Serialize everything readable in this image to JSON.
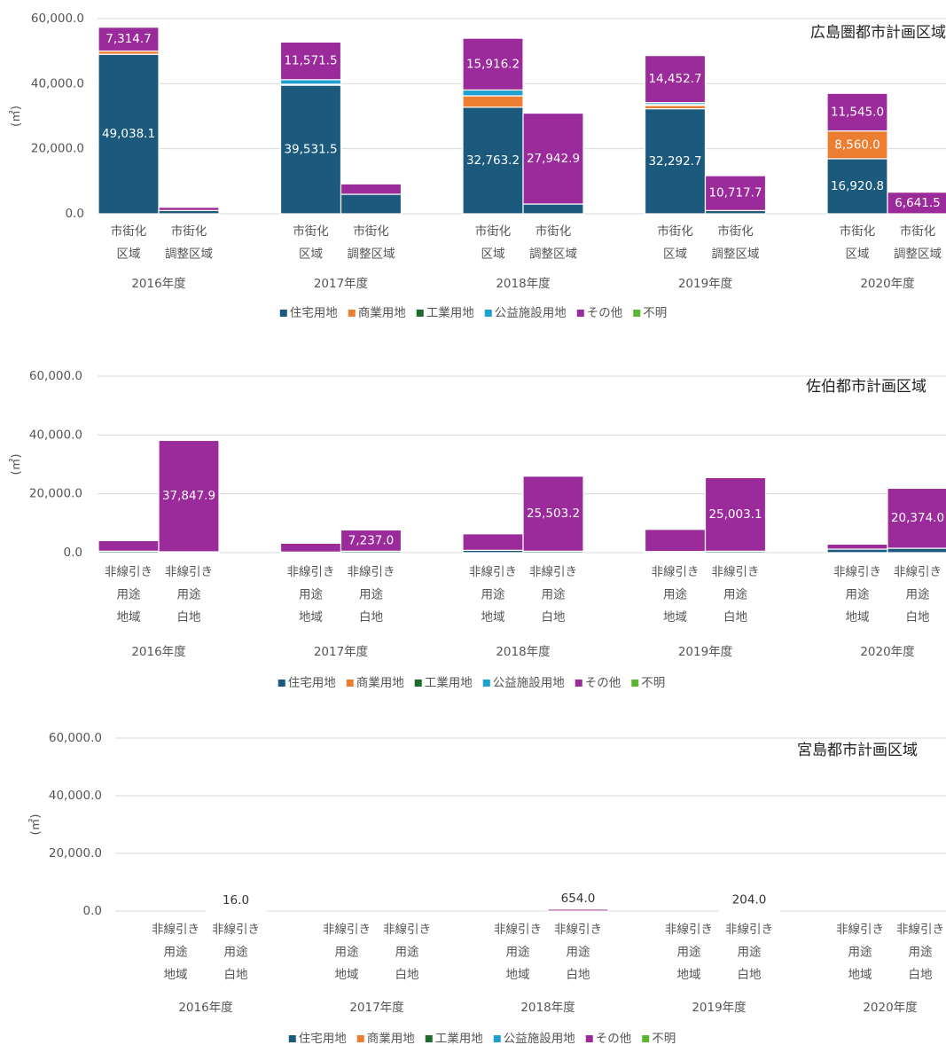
{
  "chart_data": [
    {
      "type": "bar",
      "stacked": true,
      "title": "広島圏都市計画区域",
      "y_label": "(㎡)",
      "ylim": [
        0,
        60000
      ],
      "yticks": [
        {
          "value": 0,
          "label": "0.0"
        },
        {
          "value": 20000,
          "label": "20,000.0"
        },
        {
          "value": 40000,
          "label": "40,000.0"
        },
        {
          "value": 60000,
          "label": "60,000.0"
        }
      ],
      "grid": true,
      "groups": [
        "2016年度",
        "2017年度",
        "2018年度",
        "2019年度",
        "2020年度"
      ],
      "categories": [
        [
          "市街化",
          "区域"
        ],
        [
          "市街化",
          "調整区域"
        ],
        [
          "市街化",
          "区域"
        ],
        [
          "市街化",
          "調整区域"
        ],
        [
          "市街化",
          "区域"
        ],
        [
          "市街化",
          "調整区域"
        ],
        [
          "市街化",
          "区域"
        ],
        [
          "市街化",
          "調整区域"
        ],
        [
          "市街化",
          "区域"
        ],
        [
          "市街化",
          "調整区域"
        ]
      ],
      "series": [
        {
          "name": "住宅用地",
          "color": "#1b5a7d",
          "values": [
            49038.1,
            1000,
            39531.5,
            6000,
            32763.2,
            3000,
            32292.7,
            1000,
            16920.8,
            0
          ],
          "value_labels": [
            "49,038.1",
            null,
            "39,531.5",
            null,
            "32,763.2",
            null,
            "32,292.7",
            null,
            "16,920.8",
            null
          ]
        },
        {
          "name": "商業用地",
          "color": "#ed7d31",
          "values": [
            1000,
            0,
            300,
            0,
            3500,
            0,
            1000,
            0,
            8560.0,
            0
          ],
          "value_labels": [
            null,
            null,
            null,
            null,
            null,
            null,
            null,
            null,
            "8,560.0",
            null
          ]
        },
        {
          "name": "工業用地",
          "color": "#1e6b2d",
          "values": [
            0,
            0,
            0,
            0,
            0,
            0,
            300,
            0,
            0,
            0
          ]
        },
        {
          "name": "公益施設用地",
          "color": "#1fa0d2",
          "values": [
            0,
            0,
            1400,
            0,
            1800,
            0,
            600,
            0,
            0,
            0
          ]
        },
        {
          "name": "その他",
          "color": "#9b2a9a",
          "values": [
            7314.7,
            1000,
            11571.5,
            3200,
            15916.2,
            27942.9,
            14452.7,
            10717.7,
            11545.0,
            6641.5
          ],
          "value_labels": [
            "7,314.7",
            null,
            "11,571.5",
            null,
            "15,916.2",
            "27,942.9",
            "14,452.7",
            "10,717.7",
            "11,545.0",
            "6,641.5"
          ]
        },
        {
          "name": "不明",
          "color": "#5ab52f",
          "values": [
            0,
            0,
            0,
            0,
            0,
            0,
            0,
            0,
            0,
            0
          ]
        }
      ]
    },
    {
      "type": "bar",
      "stacked": true,
      "title": "佐伯都市計画区域",
      "y_label": "(㎡)",
      "ylim": [
        0,
        60000
      ],
      "yticks": [
        {
          "value": 0,
          "label": "0.0"
        },
        {
          "value": 20000,
          "label": "20,000.0"
        },
        {
          "value": 40000,
          "label": "40,000.0"
        },
        {
          "value": 60000,
          "label": "60,000.0"
        }
      ],
      "grid": true,
      "groups": [
        "2016年度",
        "2017年度",
        "2018年度",
        "2019年度",
        "2020年度"
      ],
      "categories": [
        [
          "非線引き",
          "用途",
          "地域"
        ],
        [
          "非線引き",
          "用途",
          "白地"
        ],
        [
          "非線引き",
          "用途",
          "地域"
        ],
        [
          "非線引き",
          "用途",
          "白地"
        ],
        [
          "非線引き",
          "用途",
          "地域"
        ],
        [
          "非線引き",
          "用途",
          "白地"
        ],
        [
          "非線引き",
          "用途",
          "地域"
        ],
        [
          "非線引き",
          "用途",
          "白地"
        ],
        [
          "非線引き",
          "用途",
          "地域"
        ],
        [
          "非線引き",
          "用途",
          "白地"
        ]
      ],
      "series": [
        {
          "name": "住宅用地",
          "color": "#1b5a7d",
          "values": [
            500,
            300,
            200,
            500,
            800,
            500,
            400,
            500,
            1200,
            1500
          ]
        },
        {
          "name": "商業用地",
          "color": "#ed7d31",
          "values": [
            0,
            0,
            0,
            0,
            0,
            0,
            0,
            0,
            0,
            0
          ]
        },
        {
          "name": "工業用地",
          "color": "#1e6b2d",
          "values": [
            0,
            0,
            0,
            0,
            0,
            0,
            0,
            0,
            0,
            0
          ]
        },
        {
          "name": "公益施設用地",
          "color": "#1fa0d2",
          "values": [
            0,
            0,
            0,
            0,
            0,
            0,
            0,
            0,
            0,
            0
          ]
        },
        {
          "name": "その他",
          "color": "#9b2a9a",
          "values": [
            3600,
            37847.9,
            3000,
            7237.0,
            5600,
            25503.2,
            7500,
            25003.1,
            1700,
            20374.0
          ],
          "value_labels": [
            null,
            "37,847.9",
            null,
            "7,237.0",
            null,
            "25,503.2",
            null,
            "25,003.1",
            null,
            "20,374.0"
          ]
        },
        {
          "name": "不明",
          "color": "#5ab52f",
          "values": [
            0,
            0,
            0,
            0,
            0,
            0,
            0,
            0,
            0,
            0
          ]
        }
      ]
    },
    {
      "type": "bar",
      "stacked": true,
      "title": "宮島都市計画区域",
      "y_label": "(㎡)",
      "ylim": [
        0,
        60000
      ],
      "yticks": [
        {
          "value": 0,
          "label": "0.0"
        },
        {
          "value": 20000,
          "label": "20,000.0"
        },
        {
          "value": 40000,
          "label": "40,000.0"
        },
        {
          "value": 60000,
          "label": "60,000.0"
        }
      ],
      "grid": true,
      "groups": [
        "2016年度",
        "2017年度",
        "2018年度",
        "2019年度",
        "2020年度"
      ],
      "categories": [
        [
          "非線引き",
          "用途",
          "地域"
        ],
        [
          "非線引き",
          "用途",
          "白地"
        ],
        [
          "非線引き",
          "用途",
          "地域"
        ],
        [
          "非線引き",
          "用途",
          "白地"
        ],
        [
          "非線引き",
          "用途",
          "地域"
        ],
        [
          "非線引き",
          "用途",
          "白地"
        ],
        [
          "非線引き",
          "用途",
          "地域"
        ],
        [
          "非線引き",
          "用途",
          "白地"
        ],
        [
          "非線引き",
          "用途",
          "地域"
        ],
        [
          "非線引き",
          "用途",
          "白地"
        ]
      ],
      "series": [
        {
          "name": "住宅用地",
          "color": "#1b5a7d",
          "values": [
            0,
            16.0,
            0,
            0,
            0,
            0,
            0,
            0,
            0,
            0
          ],
          "value_labels": [
            null,
            "16.0",
            null,
            null,
            null,
            null,
            null,
            null,
            null,
            null
          ]
        },
        {
          "name": "商業用地",
          "color": "#ed7d31",
          "values": [
            0,
            0,
            0,
            0,
            0,
            0,
            0,
            0,
            0,
            0
          ]
        },
        {
          "name": "工業用地",
          "color": "#1e6b2d",
          "values": [
            0,
            0,
            0,
            0,
            0,
            0,
            0,
            0,
            0,
            0
          ]
        },
        {
          "name": "公益施設用地",
          "color": "#1fa0d2",
          "values": [
            0,
            0,
            0,
            0,
            0,
            0,
            0,
            0,
            0,
            0
          ]
        },
        {
          "name": "その他",
          "color": "#9b2a9a",
          "values": [
            0,
            0,
            0,
            0,
            0,
            654.0,
            0,
            204.0,
            0,
            0
          ],
          "value_labels": [
            null,
            null,
            null,
            null,
            null,
            "654.0",
            null,
            "204.0",
            null,
            null
          ]
        },
        {
          "name": "不明",
          "color": "#5ab52f",
          "values": [
            0,
            0,
            0,
            0,
            0,
            0,
            0,
            0,
            0,
            0
          ]
        }
      ]
    }
  ]
}
